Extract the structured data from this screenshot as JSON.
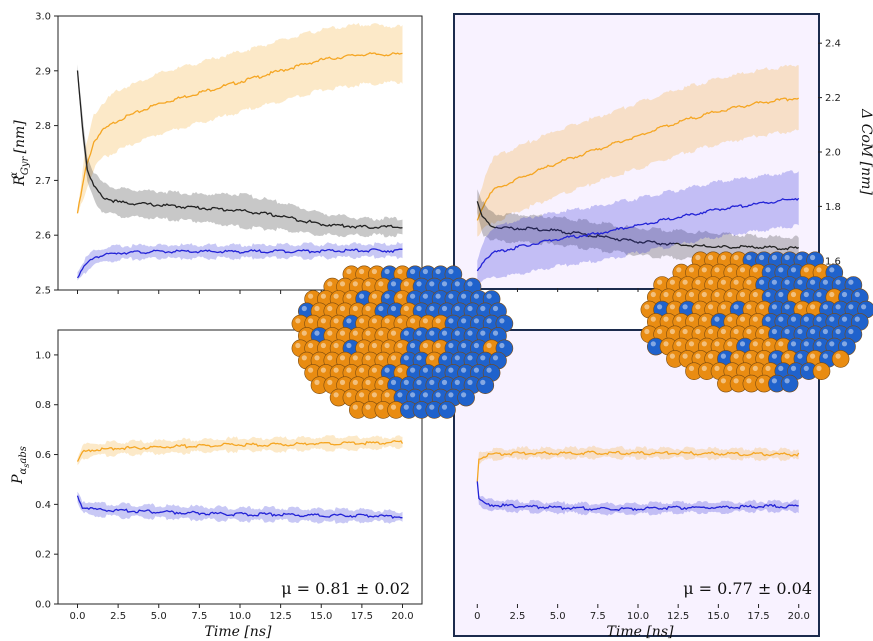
{
  "colors": {
    "orange": "#f5a623",
    "black": "#222222",
    "blue": "#2323d6",
    "panel_frame": "#1c2b4d",
    "panel_tint": "#f8f2ff",
    "sphere_orange": "#e98c12",
    "sphere_blue": "#1f62cc"
  },
  "chart_data": [
    {
      "id": "top-left",
      "type": "line",
      "ylabel_main": "R",
      "ylabel_sup": "α",
      "ylabel_sub": "Gyr",
      "ylabel_unit": " [nm]",
      "xlim": [
        -1.2,
        21.2
      ],
      "ylim": [
        2.5,
        3.0
      ],
      "yticks": [
        "2.5",
        "2.6",
        "2.7",
        "2.8",
        "2.9",
        "3.0"
      ],
      "xticks": [],
      "series": [
        {
          "color": "orange",
          "x": [
            0,
            0.5,
            1,
            1.5,
            2.5,
            5,
            7.5,
            10,
            12.5,
            15,
            17.5,
            20
          ],
          "y": [
            2.64,
            2.72,
            2.77,
            2.79,
            2.81,
            2.84,
            2.86,
            2.88,
            2.9,
            2.92,
            2.93,
            2.93
          ],
          "band": [
            0.005,
            0.04,
            0.05,
            0.05,
            0.055,
            0.055,
            0.055,
            0.055,
            0.055,
            0.055,
            0.055,
            0.05
          ]
        },
        {
          "color": "black",
          "x": [
            0,
            0.3,
            0.6,
            1,
            1.5,
            2.5,
            5,
            7.5,
            10,
            12.5,
            15,
            17.5,
            20
          ],
          "y": [
            2.9,
            2.8,
            2.72,
            2.69,
            2.67,
            2.66,
            2.655,
            2.65,
            2.645,
            2.635,
            2.62,
            2.615,
            2.615
          ],
          "band": [
            0.01,
            0.02,
            0.025,
            0.025,
            0.025,
            0.025,
            0.025,
            0.025,
            0.03,
            0.025,
            0.02,
            0.015,
            0.015
          ]
        },
        {
          "color": "blue",
          "x": [
            0,
            0.5,
            1,
            2.5,
            5,
            7.5,
            10,
            12.5,
            15,
            17.5,
            20
          ],
          "y": [
            2.525,
            2.545,
            2.56,
            2.568,
            2.57,
            2.57,
            2.57,
            2.571,
            2.571,
            2.572,
            2.572
          ],
          "band": [
            0.008,
            0.012,
            0.012,
            0.012,
            0.012,
            0.012,
            0.012,
            0.012,
            0.012,
            0.012,
            0.012
          ]
        }
      ]
    },
    {
      "id": "top-right",
      "type": "line",
      "ylabel": "Δ CoM [nm]",
      "xlim": [
        -1.2,
        21.2
      ],
      "ylim": [
        1.5,
        2.5
      ],
      "yticks": [
        "1.6",
        "1.8",
        "2.0",
        "2.2",
        "2.4"
      ],
      "xticks": [],
      "series": [
        {
          "color": "orange",
          "x": [
            0,
            0.5,
            1,
            2.5,
            5,
            7.5,
            10,
            12.5,
            15,
            17.5,
            20
          ],
          "y": [
            1.75,
            1.82,
            1.86,
            1.9,
            1.96,
            2.01,
            2.06,
            2.11,
            2.15,
            2.18,
            2.2
          ],
          "band": [
            0.06,
            0.1,
            0.12,
            0.12,
            0.12,
            0.12,
            0.12,
            0.12,
            0.12,
            0.12,
            0.12
          ]
        },
        {
          "color": "black",
          "x": [
            0,
            0.3,
            0.8,
            1.5,
            2.5,
            5,
            7.5,
            10,
            12.5,
            15,
            17.5,
            20
          ],
          "y": [
            1.82,
            1.76,
            1.73,
            1.72,
            1.72,
            1.71,
            1.69,
            1.67,
            1.66,
            1.65,
            1.65,
            1.645
          ],
          "band": [
            0.05,
            0.06,
            0.05,
            0.05,
            0.05,
            0.05,
            0.05,
            0.05,
            0.05,
            0.05,
            0.04,
            0.04
          ]
        },
        {
          "color": "blue",
          "x": [
            0,
            0.5,
            1,
            2.5,
            5,
            7.5,
            10,
            12.5,
            15,
            17.5,
            20
          ],
          "y": [
            1.56,
            1.61,
            1.63,
            1.65,
            1.68,
            1.7,
            1.73,
            1.76,
            1.79,
            1.81,
            1.83
          ],
          "band": [
            0.04,
            0.08,
            0.09,
            0.1,
            0.1,
            0.1,
            0.1,
            0.1,
            0.1,
            0.1,
            0.1
          ]
        }
      ]
    },
    {
      "id": "bottom-left",
      "type": "line",
      "ylabel_main": "P",
      "ylabel_sub": "α",
      "ylabel_subsub": "s",
      "ylabel_tail": "abs",
      "xlabel": "Time [ns]",
      "xlim": [
        -1.2,
        21.2
      ],
      "ylim": [
        0.0,
        1.1
      ],
      "yticks": [
        "0.0",
        "0.2",
        "0.4",
        "0.6",
        "0.8",
        "1.0"
      ],
      "xticks": [
        "0.0",
        "2.5",
        "5.0",
        "7.5",
        "10.0",
        "12.5",
        "15.0",
        "17.5",
        "20.0"
      ],
      "annotation": "μ = 0.81 ± 0.02",
      "series": [
        {
          "color": "orange",
          "x": [
            0,
            0.3,
            1,
            2.5,
            5,
            7.5,
            10,
            12.5,
            15,
            17.5,
            20
          ],
          "y": [
            0.57,
            0.61,
            0.62,
            0.625,
            0.63,
            0.635,
            0.64,
            0.64,
            0.645,
            0.645,
            0.65
          ],
          "band": [
            0.02,
            0.025,
            0.025,
            0.025,
            0.025,
            0.025,
            0.025,
            0.025,
            0.025,
            0.025,
            0.02
          ]
        },
        {
          "color": "blue",
          "x": [
            0,
            0.3,
            1,
            2.5,
            5,
            7.5,
            10,
            12.5,
            15,
            17.5,
            20
          ],
          "y": [
            0.43,
            0.39,
            0.38,
            0.375,
            0.37,
            0.365,
            0.36,
            0.36,
            0.355,
            0.355,
            0.35
          ],
          "band": [
            0.02,
            0.025,
            0.025,
            0.025,
            0.025,
            0.025,
            0.025,
            0.025,
            0.025,
            0.025,
            0.02
          ]
        }
      ]
    },
    {
      "id": "bottom-right",
      "type": "line",
      "xlabel": "Time [ns]",
      "xlim": [
        -1.2,
        21.2
      ],
      "ylim": [
        0.0,
        1.1
      ],
      "yticks": [],
      "xticks": [
        "0",
        "2.5",
        "5.0",
        "7.5",
        "10.0",
        "12.5",
        "15.0",
        "17.5",
        "20.0"
      ],
      "annotation": "μ = 0.77 ± 0.04",
      "series": [
        {
          "color": "orange",
          "x": [
            0,
            0.1,
            0.5,
            1,
            2.5,
            5,
            7.5,
            10,
            12.5,
            15,
            17.5,
            20
          ],
          "y": [
            0.5,
            0.59,
            0.6,
            0.605,
            0.61,
            0.61,
            0.612,
            0.61,
            0.61,
            0.608,
            0.606,
            0.605
          ],
          "band": [
            0.02,
            0.02,
            0.02,
            0.02,
            0.02,
            0.02,
            0.02,
            0.02,
            0.02,
            0.02,
            0.02,
            0.02
          ]
        },
        {
          "color": "blue",
          "x": [
            0,
            0.1,
            0.5,
            1,
            2.5,
            5,
            7.5,
            10,
            12.5,
            15,
            17.5,
            20
          ],
          "y": [
            0.5,
            0.42,
            0.405,
            0.4,
            0.395,
            0.39,
            0.385,
            0.385,
            0.39,
            0.39,
            0.395,
            0.395
          ],
          "band": [
            0.02,
            0.02,
            0.02,
            0.02,
            0.02,
            0.02,
            0.02,
            0.02,
            0.02,
            0.02,
            0.02,
            0.02
          ]
        }
      ]
    }
  ],
  "illustrations": [
    {
      "id": "nanoparticle-left",
      "description_icon": "nanoparticle-sphere-cluster"
    },
    {
      "id": "nanoparticle-right",
      "description_icon": "nanoparticle-sphere-cluster"
    }
  ]
}
